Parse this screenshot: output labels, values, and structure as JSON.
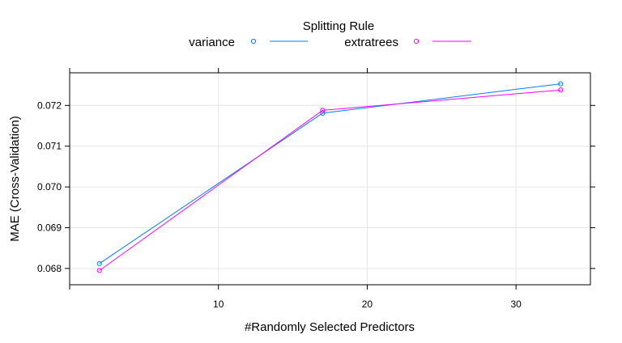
{
  "chart_data": {
    "type": "line",
    "title": "",
    "xlabel": "#Randomly Selected Predictors",
    "ylabel": "MAE (Cross-Validation)",
    "legend": {
      "title": "Splitting Rule",
      "placement": "top-center"
    },
    "xlim": [
      0,
      35
    ],
    "ylim": [
      0.0676,
      0.0728
    ],
    "x_ticks": [
      10,
      20,
      30
    ],
    "y_ticks": [
      0.068,
      0.069,
      0.07,
      0.071,
      0.072
    ],
    "y_tick_labels": [
      "0.068",
      "0.069",
      "0.070",
      "0.071",
      "0.072"
    ],
    "grid": true,
    "series": [
      {
        "name": "variance",
        "color": "#0080ff",
        "x": [
          2,
          17,
          33
        ],
        "values": [
          0.06812,
          0.07181,
          0.07253
        ]
      },
      {
        "name": "extratrees",
        "color": "#ff00ff",
        "x": [
          2,
          17,
          33
        ],
        "values": [
          0.06795,
          0.07188,
          0.07238
        ]
      }
    ]
  }
}
